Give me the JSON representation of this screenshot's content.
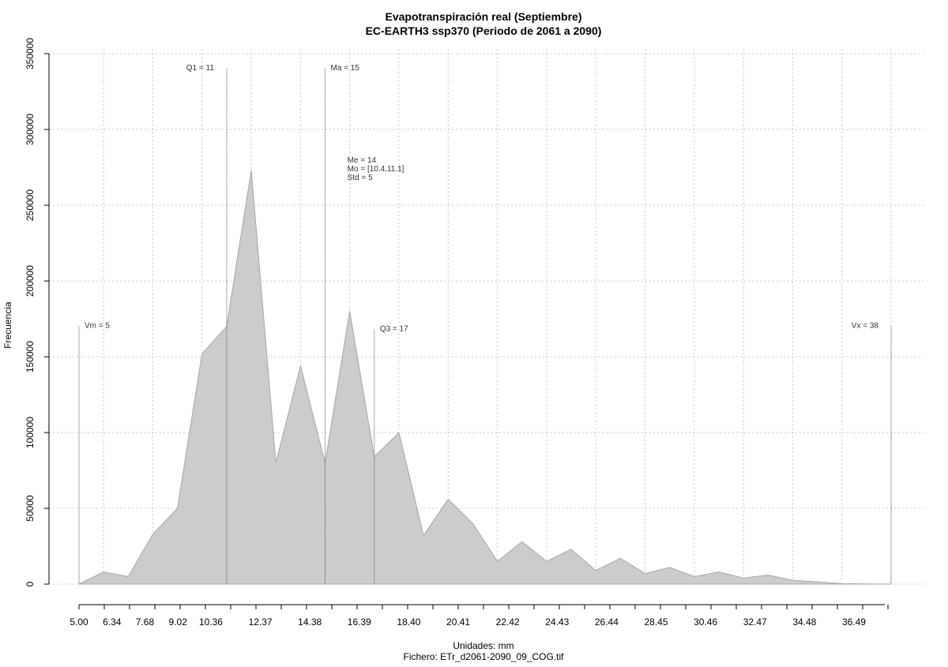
{
  "chart_data": {
    "type": "area",
    "title_line1": "Evapotranspiración real (Septiembre)",
    "title_line2": "EC-EARTH3 ssp370 (Periodo de 2061 a 2090)",
    "xlabel": "Unidades: mm",
    "caption": "Fichero: ETr_d2061-2090_09_COG.tif",
    "ylabel": "Frecuencia",
    "xlim": [
      5.0,
      38.0
    ],
    "ylim": [
      0,
      350000
    ],
    "x_tick_labels": [
      "5.00",
      "6.34",
      "7.68",
      "9.02",
      "10.36",
      "12.37",
      "14.38",
      "16.39",
      "18.40",
      "20.41",
      "22.42",
      "24.43",
      "26.44",
      "28.45",
      "30.46",
      "32.47",
      "34.48",
      "36.49"
    ],
    "y_tick_labels": [
      "0",
      "50000",
      "100000",
      "150000",
      "200000",
      "250000",
      "300000",
      "350000"
    ],
    "grid": true,
    "fill_color": "#cccccc",
    "stroke_color": "#a6a6a6",
    "x": [
      5.0,
      6.0,
      7.0,
      8.0,
      9.0,
      10.0,
      11.0,
      12.0,
      13.0,
      14.0,
      15.0,
      16.0,
      17.0,
      18.0,
      19.0,
      20.0,
      21.0,
      22.0,
      23.0,
      24.0,
      25.0,
      26.0,
      27.0,
      28.0,
      29.0,
      30.0,
      31.0,
      32.0,
      33.0,
      34.0,
      35.0,
      36.0,
      37.0,
      38.0
    ],
    "values": [
      0,
      8000,
      5000,
      33000,
      50000,
      152000,
      170000,
      273000,
      80000,
      144000,
      80000,
      180000,
      84000,
      100000,
      32000,
      56000,
      40000,
      15000,
      28000,
      15000,
      23000,
      9000,
      17000,
      7000,
      11000,
      5000,
      8000,
      4000,
      6000,
      2500,
      1500,
      300,
      100,
      0
    ],
    "annotations": [
      {
        "label": "Vm = 5",
        "x": 5.0,
        "y_top": 170000,
        "label_side": "right"
      },
      {
        "label": "Q1 = 11",
        "x": 11.0,
        "y_top": 340000,
        "label_side": "left"
      },
      {
        "label": "Ma = 15",
        "x": 15.0,
        "y_top": 340000,
        "label_side": "right"
      },
      {
        "label": "Q3 = 17",
        "x": 17.0,
        "y_top": 168000,
        "label_side": "right"
      },
      {
        "label": "Vx = 38",
        "x": 38.0,
        "y_top": 170000,
        "label_side": "left"
      }
    ],
    "stats": [
      "Me = 14",
      "Mo = [10.4,11.1]",
      "Std = 5"
    ]
  }
}
